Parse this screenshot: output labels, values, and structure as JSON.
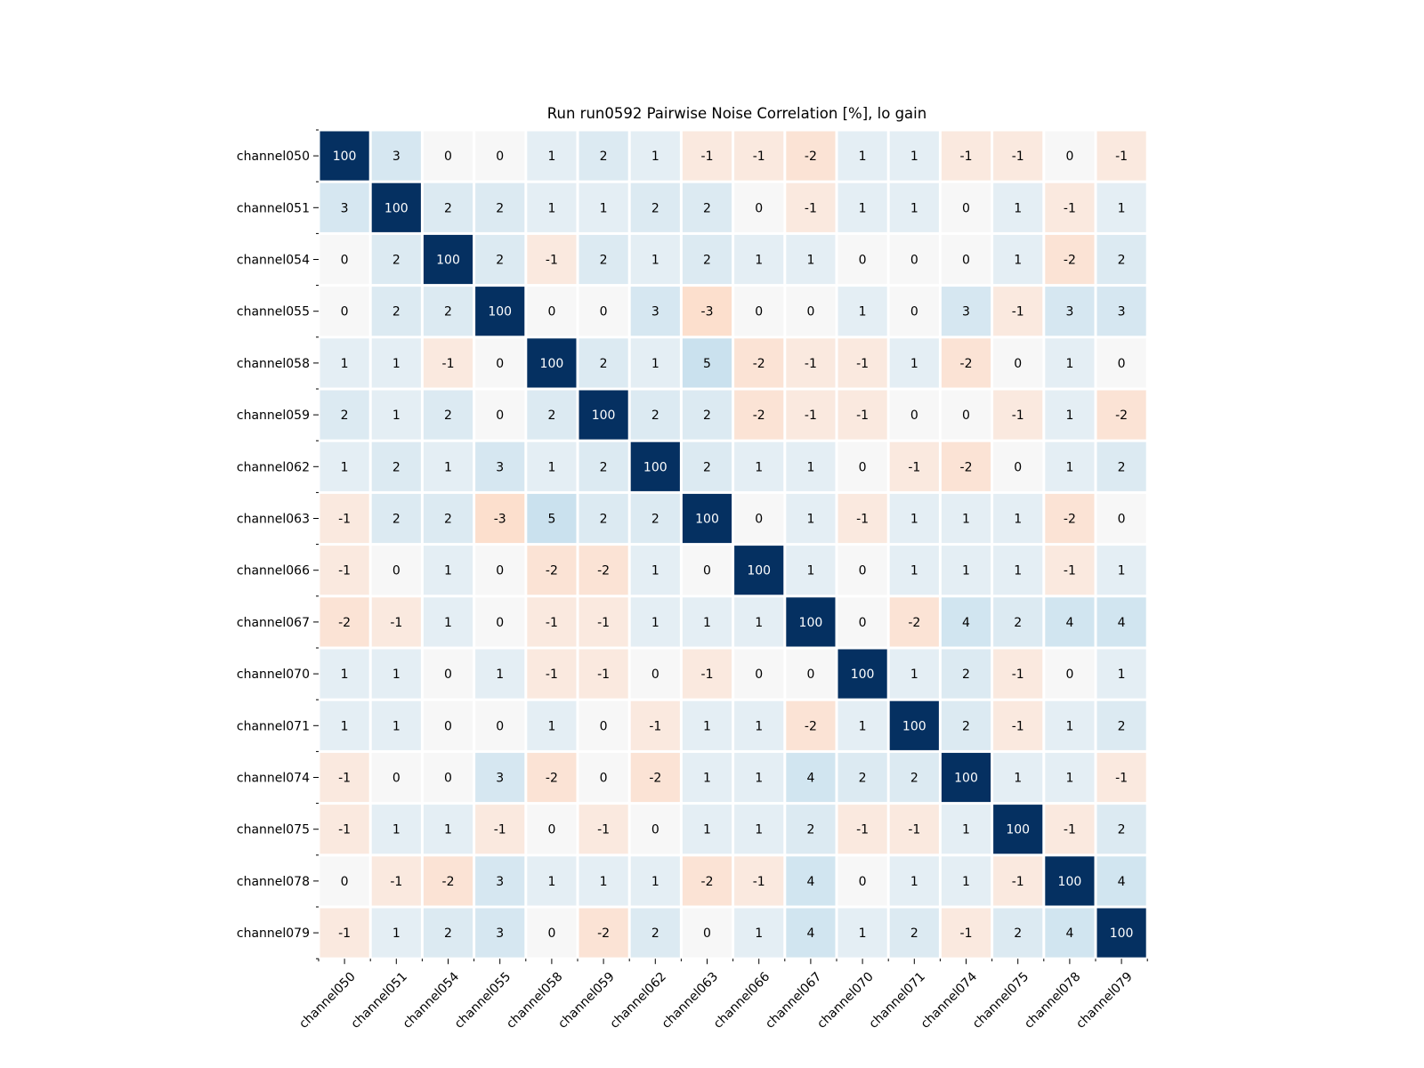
{
  "chart_data": {
    "type": "heatmap",
    "title": "Run run0592 Pairwise Noise Correlation [%], lo gain",
    "labels": [
      "channel050",
      "channel051",
      "channel054",
      "channel055",
      "channel058",
      "channel059",
      "channel062",
      "channel063",
      "channel066",
      "channel067",
      "channel070",
      "channel071",
      "channel074",
      "channel075",
      "channel078",
      "channel079"
    ],
    "matrix": [
      [
        100,
        3,
        0,
        0,
        1,
        2,
        1,
        -1,
        -1,
        -2,
        1,
        1,
        -1,
        -1,
        0,
        -1
      ],
      [
        3,
        100,
        2,
        2,
        1,
        1,
        2,
        2,
        0,
        -1,
        1,
        1,
        0,
        1,
        -1,
        1
      ],
      [
        0,
        2,
        100,
        2,
        -1,
        2,
        1,
        2,
        1,
        1,
        0,
        0,
        0,
        1,
        -2,
        2
      ],
      [
        0,
        2,
        2,
        100,
        0,
        0,
        3,
        -3,
        0,
        0,
        1,
        0,
        3,
        -1,
        3,
        3
      ],
      [
        1,
        1,
        -1,
        0,
        100,
        2,
        1,
        5,
        -2,
        -1,
        -1,
        1,
        -2,
        0,
        1,
        0
      ],
      [
        2,
        1,
        2,
        0,
        2,
        100,
        2,
        2,
        -2,
        -1,
        -1,
        0,
        0,
        -1,
        1,
        -2
      ],
      [
        1,
        2,
        1,
        3,
        1,
        2,
        100,
        2,
        1,
        1,
        0,
        -1,
        -2,
        0,
        1,
        2
      ],
      [
        -1,
        2,
        2,
        -3,
        5,
        2,
        2,
        100,
        0,
        1,
        -1,
        1,
        1,
        1,
        -2,
        0
      ],
      [
        -1,
        0,
        1,
        0,
        -2,
        -2,
        1,
        0,
        100,
        1,
        0,
        1,
        1,
        1,
        -1,
        1
      ],
      [
        -2,
        -1,
        1,
        0,
        -1,
        -1,
        1,
        1,
        1,
        100,
        0,
        -2,
        4,
        2,
        4,
        4
      ],
      [
        1,
        1,
        0,
        1,
        -1,
        -1,
        0,
        -1,
        0,
        0,
        100,
        1,
        2,
        -1,
        0,
        1
      ],
      [
        1,
        1,
        0,
        0,
        1,
        0,
        -1,
        1,
        1,
        -2,
        1,
        100,
        2,
        -1,
        1,
        2
      ],
      [
        -1,
        0,
        0,
        3,
        -2,
        0,
        -2,
        1,
        1,
        4,
        2,
        2,
        100,
        1,
        1,
        -1
      ],
      [
        -1,
        1,
        1,
        -1,
        0,
        -1,
        0,
        1,
        1,
        2,
        -1,
        -1,
        1,
        100,
        -1,
        2
      ],
      [
        0,
        -1,
        -2,
        3,
        1,
        1,
        1,
        -2,
        -1,
        4,
        0,
        1,
        1,
        -1,
        100,
        4
      ],
      [
        -1,
        1,
        2,
        3,
        0,
        -2,
        2,
        0,
        1,
        4,
        1,
        2,
        -1,
        2,
        4,
        100
      ]
    ],
    "colormap": "RdBu (diverging, blue = positive, red = negative)",
    "vmin": -100,
    "vmax": 100,
    "cell_text_color_dark": "#000000",
    "cell_text_color_light": "#ffffff",
    "cell_border_color": "#ffffff"
  }
}
